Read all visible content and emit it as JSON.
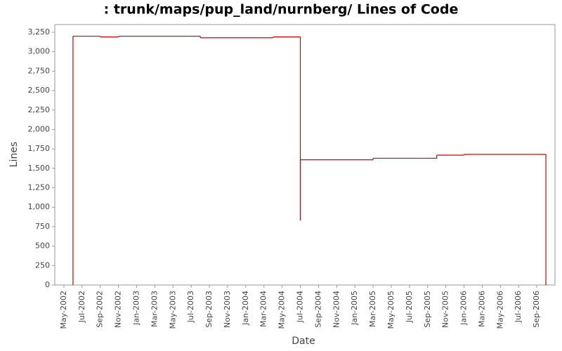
{
  "chart_data": {
    "type": "step",
    "title": ": trunk/maps/pup_land/nurnberg/ Lines of Code",
    "x_label": "Date",
    "y_label": "Lines",
    "xlim": [
      "2002-04",
      "2006-11"
    ],
    "ylim": [
      0,
      3250
    ],
    "yticks": [
      0,
      250,
      500,
      750,
      {
        "value": 1000,
        "label": "1,000"
      },
      {
        "value": 1250,
        "label": "1,250"
      },
      {
        "value": 1500,
        "label": "1,500"
      },
      {
        "value": 1750,
        "label": "1,750"
      },
      {
        "value": 2000,
        "label": "2,000"
      },
      {
        "value": 2250,
        "label": "2,250"
      },
      {
        "value": 2500,
        "label": "2,500"
      },
      {
        "value": 2750,
        "label": "2,750"
      },
      {
        "value": 3000,
        "label": "3,000"
      },
      {
        "value": 3250,
        "label": "3,250"
      }
    ],
    "xticks": [
      {
        "value": "2002-05",
        "label": "May-2002"
      },
      {
        "value": "2002-07",
        "label": "Jul-2002"
      },
      {
        "value": "2002-09",
        "label": "Sep-2002"
      },
      {
        "value": "2002-11",
        "label": "Nov-2002"
      },
      {
        "value": "2003-01",
        "label": "Jan-2003"
      },
      {
        "value": "2003-03",
        "label": "Mar-2003"
      },
      {
        "value": "2003-05",
        "label": "May-2003"
      },
      {
        "value": "2003-07",
        "label": "Jul-2003"
      },
      {
        "value": "2003-09",
        "label": "Sep-2003"
      },
      {
        "value": "2003-11",
        "label": "Nov-2003"
      },
      {
        "value": "2004-01",
        "label": "Jan-2004"
      },
      {
        "value": "2004-03",
        "label": "Mar-2004"
      },
      {
        "value": "2004-05",
        "label": "May-2004"
      },
      {
        "value": "2004-07",
        "label": "Jul-2004"
      },
      {
        "value": "2004-09",
        "label": "Sep-2004"
      },
      {
        "value": "2004-11",
        "label": "Nov-2004"
      },
      {
        "value": "2005-01",
        "label": "Jan-2005"
      },
      {
        "value": "2005-03",
        "label": "Mar-2005"
      },
      {
        "value": "2005-05",
        "label": "May-2005"
      },
      {
        "value": "2005-07",
        "label": "Jul-2005"
      },
      {
        "value": "2005-09",
        "label": "Sep-2005"
      },
      {
        "value": "2005-11",
        "label": "Nov-2005"
      },
      {
        "value": "2006-01",
        "label": "Jan-2006"
      },
      {
        "value": "2006-03",
        "label": "Mar-2006"
      },
      {
        "value": "2006-05",
        "label": "May-2006"
      },
      {
        "value": "2006-07",
        "label": "Jul-2006"
      },
      {
        "value": "2006-09",
        "label": "Sep-2006"
      }
    ],
    "color": "#cc0000",
    "x": [
      "2002-06",
      "2002-06",
      "2002-09",
      "2002-11",
      "2003-08",
      "2004-04",
      "2004-07",
      "2004-07",
      "2005-03",
      "2005-10",
      "2006-01",
      "2006-10"
    ],
    "values": [
      0,
      3200,
      3190,
      3200,
      3180,
      3190,
      830,
      1610,
      1630,
      1670,
      1680,
      0
    ]
  }
}
